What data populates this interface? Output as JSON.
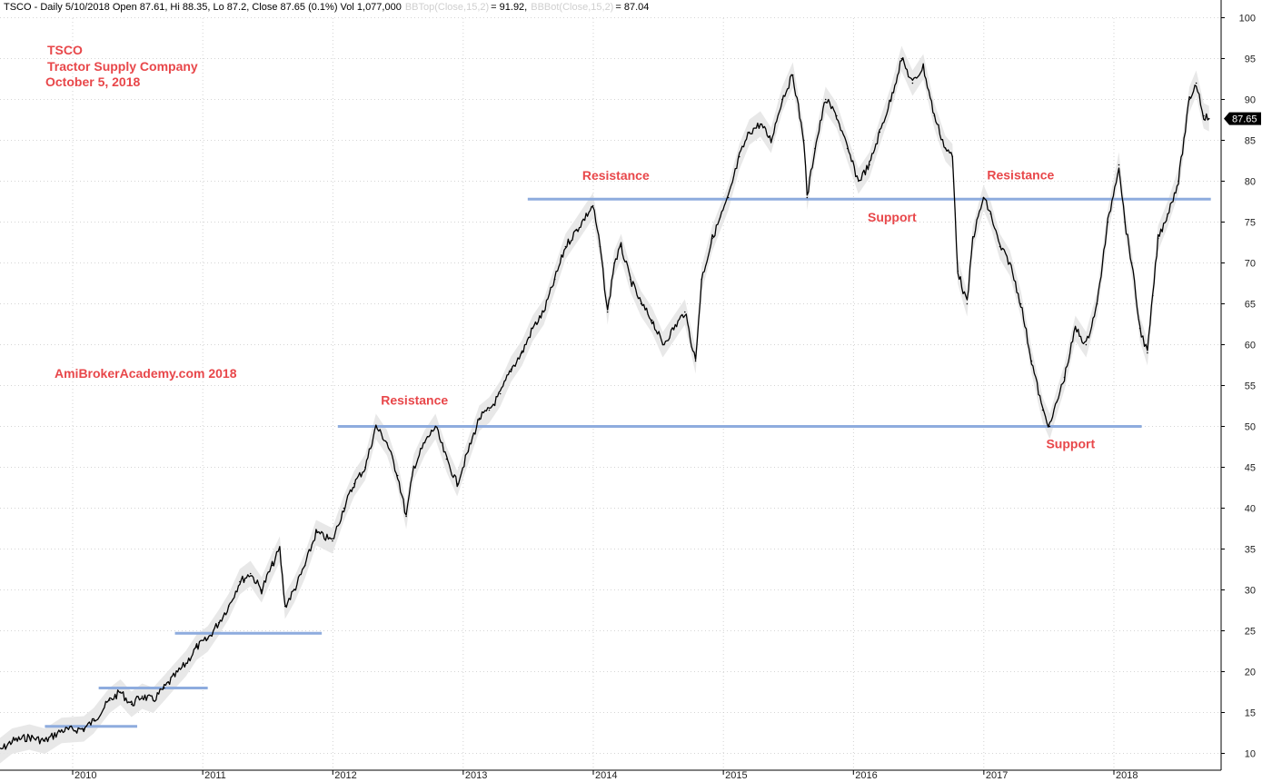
{
  "header": {
    "prefix": "TSCO - Daily 5/10/2018 Open 87.61, Hi 88.35, Lo 87.2, Close 87.65 (0.1%) Vol 1,077,000",
    "bbtop_label": "BBTop(Close,15,2)",
    "bbtop_value": "= 91.92,",
    "bbbot_label": "BBBot(Close,15,2)",
    "bbbot_value": "= 87.04"
  },
  "titles": {
    "ticker": "TSCO",
    "company": "Tractor Supply Company",
    "date": "October 5, 2018",
    "watermark": "AmiBrokerAcademy.com  2018"
  },
  "last_price_badge": "87.65",
  "colors": {
    "annotation": "#e8474a",
    "level_line": "#8eacde",
    "price": "#000000",
    "band": "#e6e6e6",
    "grid": "#c8c8c8"
  },
  "chart_data": {
    "type": "line",
    "title": "TSCO - Daily",
    "ylim": [
      10,
      100
    ],
    "yticks": [
      "10",
      "15",
      "20",
      "25",
      "30",
      "35",
      "40",
      "45",
      "50",
      "55",
      "60",
      "65",
      "70",
      "75",
      "80",
      "85",
      "90",
      "95",
      "100"
    ],
    "xlim": [
      "2009-06-01",
      "2018-05-15"
    ],
    "xticks": [
      {
        "label": "2010",
        "date": "2010-01-01"
      },
      {
        "label": "2011",
        "date": "2011-01-01"
      },
      {
        "label": "2012",
        "date": "2012-01-01"
      },
      {
        "label": "2013",
        "date": "2013-01-01"
      },
      {
        "label": "2014",
        "date": "2014-01-01"
      },
      {
        "label": "2015",
        "date": "2015-01-01"
      },
      {
        "label": "2016",
        "date": "2016-01-01"
      },
      {
        "label": "2017",
        "date": "2017-01-01"
      },
      {
        "label": "2018",
        "date": "2018-01-01"
      }
    ],
    "grid": true,
    "series": [
      {
        "name": "Close",
        "points": [
          [
            "2009-06-01",
            10
          ],
          [
            "2009-07-15",
            11.5
          ],
          [
            "2009-09-01",
            12
          ],
          [
            "2009-10-15",
            11.5
          ],
          [
            "2009-12-01",
            12.8
          ],
          [
            "2010-02-01",
            13
          ],
          [
            "2010-03-01",
            14
          ],
          [
            "2010-04-15",
            16.5
          ],
          [
            "2010-05-15",
            17.5
          ],
          [
            "2010-06-15",
            16
          ],
          [
            "2010-07-15",
            17
          ],
          [
            "2010-08-15",
            16.5
          ],
          [
            "2010-09-15",
            18
          ],
          [
            "2010-10-15",
            19.5
          ],
          [
            "2010-11-15",
            21
          ],
          [
            "2010-12-15",
            23
          ],
          [
            "2011-01-15",
            24
          ],
          [
            "2011-02-15",
            26
          ],
          [
            "2011-03-15",
            28
          ],
          [
            "2011-04-15",
            31
          ],
          [
            "2011-05-15",
            32
          ],
          [
            "2011-06-15",
            30
          ],
          [
            "2011-07-15",
            33
          ],
          [
            "2011-08-05",
            35
          ],
          [
            "2011-08-20",
            28
          ],
          [
            "2011-09-15",
            30
          ],
          [
            "2011-10-15",
            33
          ],
          [
            "2011-11-15",
            37
          ],
          [
            "2011-12-31",
            36
          ],
          [
            "2012-02-01",
            40
          ],
          [
            "2012-03-01",
            43
          ],
          [
            "2012-04-01",
            45
          ],
          [
            "2012-05-01",
            50
          ],
          [
            "2012-06-01",
            48
          ],
          [
            "2012-07-01",
            44
          ],
          [
            "2012-07-25",
            39
          ],
          [
            "2012-08-15",
            45
          ],
          [
            "2012-09-15",
            48
          ],
          [
            "2012-10-15",
            50
          ],
          [
            "2012-11-15",
            46
          ],
          [
            "2012-12-15",
            43
          ],
          [
            "2013-01-15",
            47
          ],
          [
            "2013-02-15",
            51
          ],
          [
            "2013-03-15",
            52
          ],
          [
            "2013-04-15",
            54
          ],
          [
            "2013-05-15",
            57
          ],
          [
            "2013-06-15",
            59
          ],
          [
            "2013-07-15",
            62
          ],
          [
            "2013-08-15",
            64
          ],
          [
            "2013-09-15",
            68
          ],
          [
            "2013-10-15",
            72
          ],
          [
            "2013-11-15",
            74
          ],
          [
            "2013-12-31",
            77
          ],
          [
            "2014-01-20",
            72
          ],
          [
            "2014-02-10",
            64
          ],
          [
            "2014-03-01",
            70
          ],
          [
            "2014-03-20",
            72
          ],
          [
            "2014-04-15",
            68
          ],
          [
            "2014-05-15",
            65
          ],
          [
            "2014-06-15",
            63
          ],
          [
            "2014-07-15",
            60
          ],
          [
            "2014-08-15",
            62
          ],
          [
            "2014-09-15",
            64
          ],
          [
            "2014-10-15",
            58
          ],
          [
            "2014-11-01",
            68
          ],
          [
            "2014-12-01",
            73
          ],
          [
            "2015-01-15",
            78
          ],
          [
            "2015-02-15",
            83
          ],
          [
            "2015-03-15",
            86
          ],
          [
            "2015-04-15",
            87
          ],
          [
            "2015-05-15",
            85
          ],
          [
            "2015-06-15",
            90
          ],
          [
            "2015-07-15",
            93
          ],
          [
            "2015-08-15",
            85
          ],
          [
            "2015-08-24",
            78
          ],
          [
            "2015-09-15",
            84
          ],
          [
            "2015-10-15",
            90
          ],
          [
            "2015-11-15",
            88
          ],
          [
            "2015-12-15",
            84
          ],
          [
            "2016-01-15",
            80
          ],
          [
            "2016-02-15",
            82
          ],
          [
            "2016-03-15",
            86
          ],
          [
            "2016-04-15",
            90
          ],
          [
            "2016-05-15",
            95
          ],
          [
            "2016-06-15",
            92
          ],
          [
            "2016-07-15",
            94
          ],
          [
            "2016-08-15",
            88
          ],
          [
            "2016-09-15",
            84
          ],
          [
            "2016-10-05",
            83
          ],
          [
            "2016-10-20",
            69
          ],
          [
            "2016-11-15",
            65
          ],
          [
            "2016-12-01",
            73
          ],
          [
            "2016-12-31",
            78
          ],
          [
            "2017-01-20",
            76
          ],
          [
            "2017-02-15",
            72
          ],
          [
            "2017-03-15",
            70
          ],
          [
            "2017-04-15",
            65
          ],
          [
            "2017-05-15",
            58
          ],
          [
            "2017-06-15",
            52
          ],
          [
            "2017-07-05",
            50
          ],
          [
            "2017-07-25",
            53
          ],
          [
            "2017-08-15",
            56
          ],
          [
            "2017-09-15",
            62
          ],
          [
            "2017-10-15",
            60
          ],
          [
            "2017-11-15",
            65
          ],
          [
            "2017-12-15",
            75
          ],
          [
            "2018-01-15",
            82
          ],
          [
            "2018-02-01",
            75
          ],
          [
            "2018-02-20",
            70
          ],
          [
            "2018-03-15",
            62
          ],
          [
            "2018-04-05",
            59
          ],
          [
            "2018-04-20",
            66
          ],
          [
            "2018-05-05",
            73
          ],
          [
            "2018-06-01",
            76
          ],
          [
            "2018-07-01",
            80
          ],
          [
            "2018-08-01",
            90
          ],
          [
            "2018-08-20",
            92
          ],
          [
            "2018-09-10",
            88
          ],
          [
            "2018-09-25",
            87.65
          ]
        ]
      }
    ],
    "levels": [
      {
        "y": 13.3,
        "from": "2009-10-15",
        "to": "2010-07-01"
      },
      {
        "y": 18,
        "from": "2010-03-15",
        "to": "2011-01-15"
      },
      {
        "y": 24.7,
        "from": "2010-10-15",
        "to": "2011-12-01"
      },
      {
        "y": 50,
        "from": "2012-01-15",
        "to": "2018-03-20"
      },
      {
        "y": 77.8,
        "from": "2013-07-01",
        "to": "2018-09-30"
      }
    ],
    "annotations": [
      {
        "text": "Resistance",
        "x": "2012-05-15",
        "y": 53.2
      },
      {
        "text": "Resistance",
        "x": "2013-12-01",
        "y": 80.7
      },
      {
        "text": "Support",
        "x": "2016-02-10",
        "y": 75.6
      },
      {
        "text": "Resistance",
        "x": "2017-01-10",
        "y": 80.8
      },
      {
        "text": "Support",
        "x": "2017-06-25",
        "y": 47.9
      }
    ],
    "last_value": 87.65
  }
}
